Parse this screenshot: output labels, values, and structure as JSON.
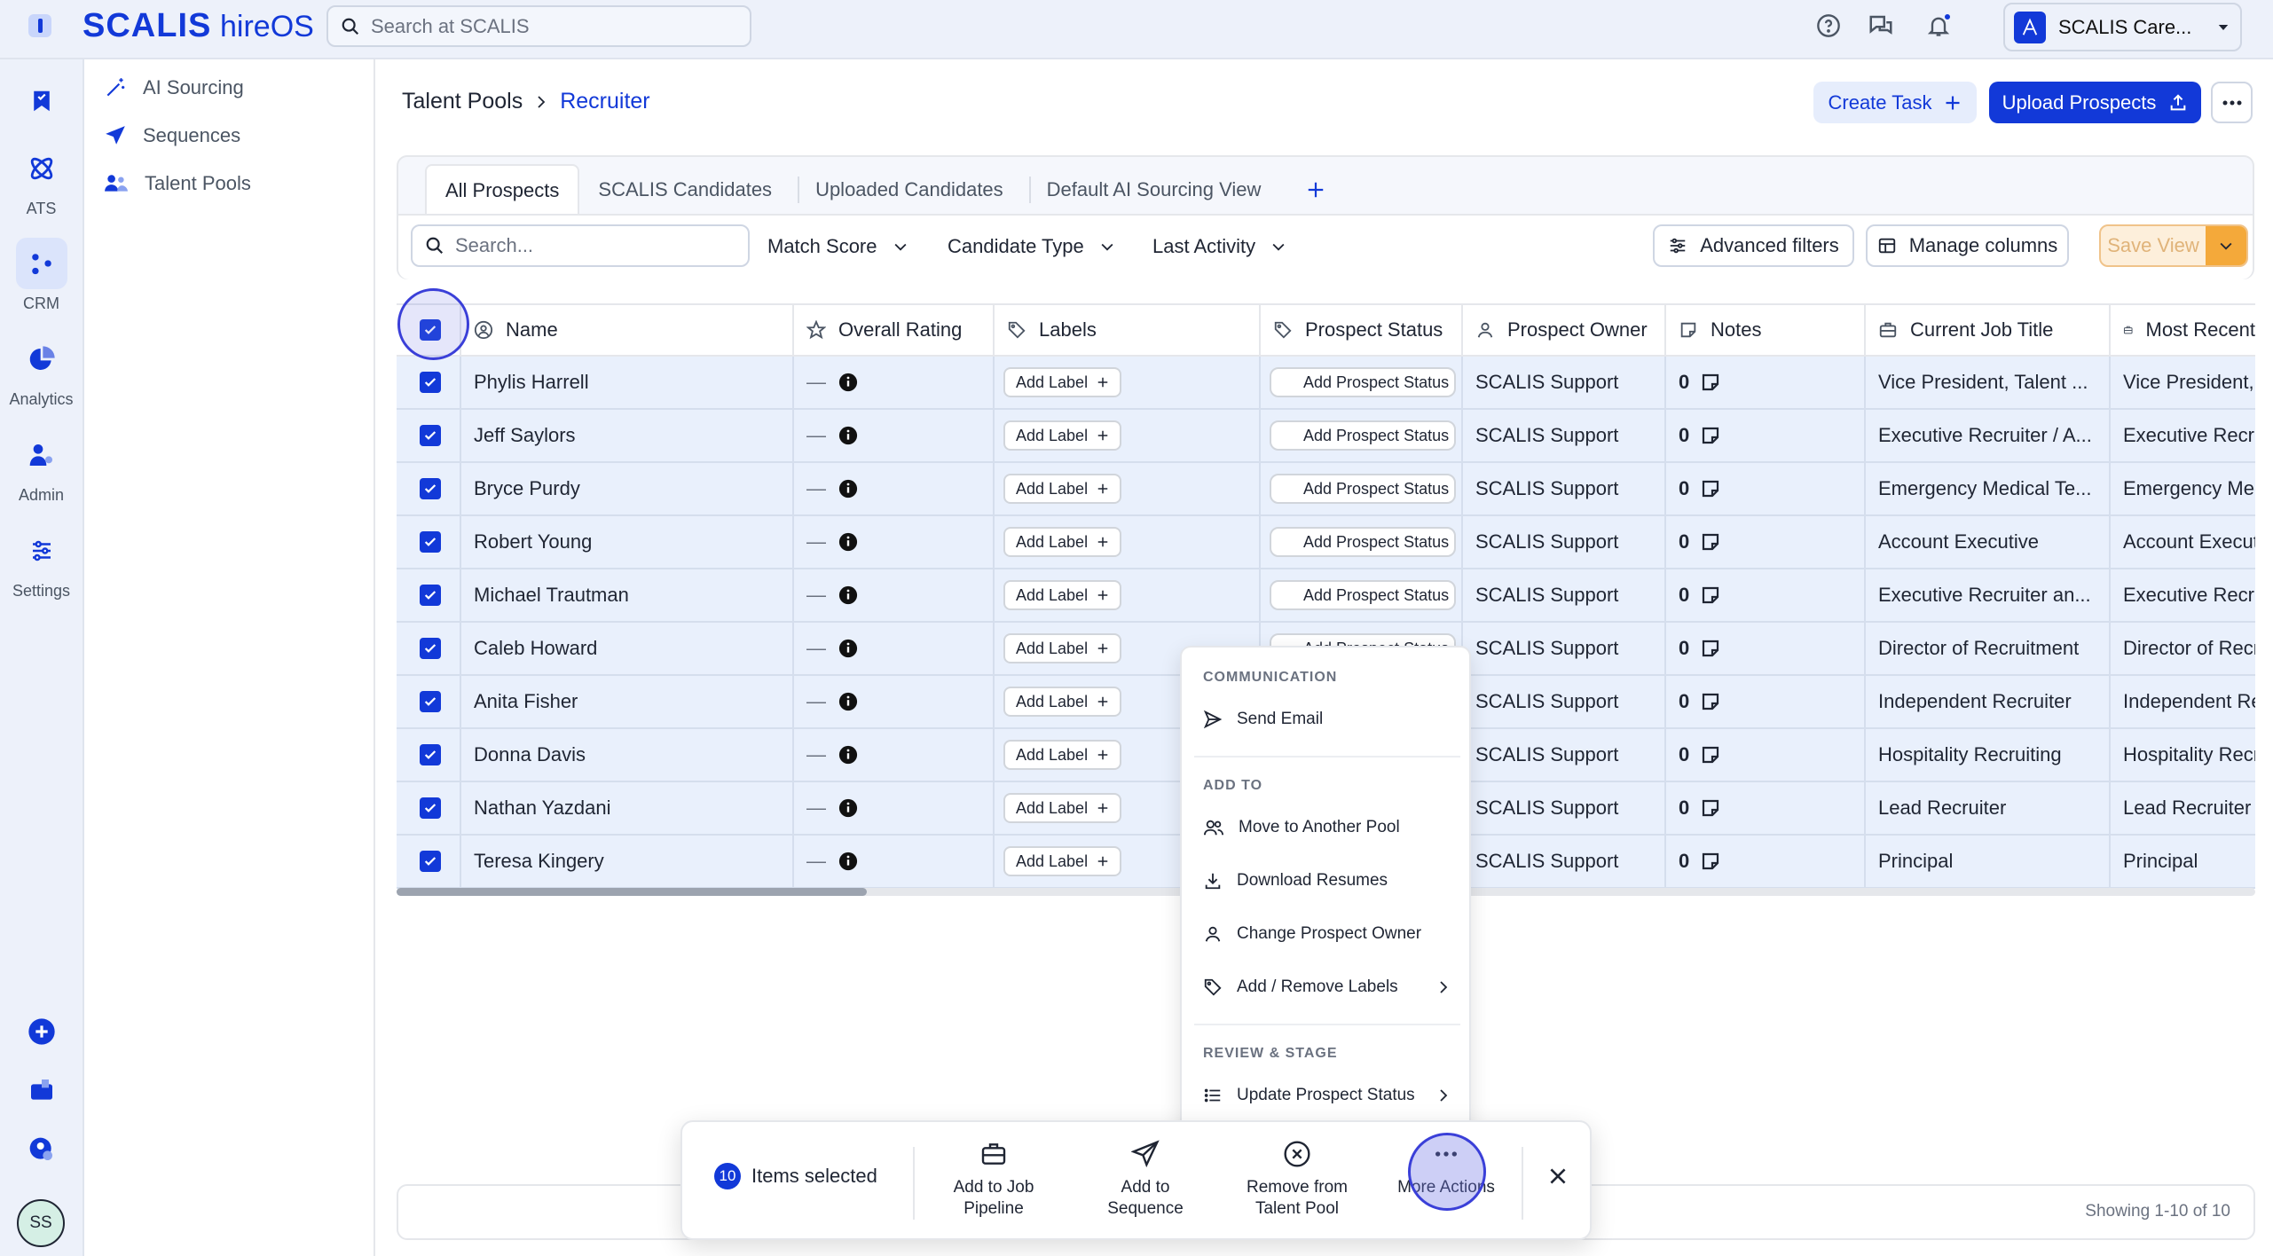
{
  "app": {
    "brand": "SCALIS",
    "product": "hireOS"
  },
  "topbar": {
    "search_placeholder": "Search at SCALIS",
    "org_name": "SCALIS Care..."
  },
  "rail": {
    "items": [
      {
        "label": "",
        "icon": "bookmark-icon"
      },
      {
        "label": "ATS",
        "icon": "atom-icon"
      },
      {
        "label": "CRM",
        "icon": "crm-dots-icon",
        "active": true
      },
      {
        "label": "Analytics",
        "icon": "pie-chart-icon"
      },
      {
        "label": "Admin",
        "icon": "admin-user-icon"
      },
      {
        "label": "Settings",
        "icon": "sliders-icon"
      }
    ],
    "user_initials": "SS"
  },
  "subnav": {
    "items": [
      {
        "label": "AI Sourcing",
        "icon": "magic-wand-icon"
      },
      {
        "label": "Sequences",
        "icon": "paper-plane-icon"
      },
      {
        "label": "Talent Pools",
        "icon": "people-icon"
      }
    ]
  },
  "breadcrumb": {
    "parent": "Talent Pools",
    "current": "Recruiter"
  },
  "header": {
    "create_task": "Create Task",
    "upload": "Upload Prospects"
  },
  "tabs": [
    "All Prospects",
    "SCALIS Candidates",
    "Uploaded Candidates",
    "Default AI Sourcing View"
  ],
  "filters": {
    "search_placeholder": "Search...",
    "dropdowns": [
      "Match Score",
      "Candidate Type",
      "Last Activity"
    ],
    "advanced": "Advanced filters",
    "manage_columns": "Manage columns",
    "save_view": "Save View"
  },
  "columns": [
    "Name",
    "Overall Rating",
    "Labels",
    "Prospect Status",
    "Prospect Owner",
    "Notes",
    "Current Job Title",
    "Most Recent"
  ],
  "rows": [
    {
      "name": "Phylis Harrell",
      "rating": "—",
      "label": "Add Label",
      "status": "Add Prospect Status",
      "owner": "SCALIS Support",
      "notes": "0",
      "title": "Vice President, Talent ...",
      "recent": "Vice President,"
    },
    {
      "name": "Jeff Saylors",
      "rating": "—",
      "label": "Add Label",
      "status": "Add Prospect Status",
      "owner": "SCALIS Support",
      "notes": "0",
      "title": "Executive Recruiter / A...",
      "recent": "Executive Recrui"
    },
    {
      "name": "Bryce Purdy",
      "rating": "—",
      "label": "Add Label",
      "status": "Add Prospect Status",
      "owner": "SCALIS Support",
      "notes": "0",
      "title": "Emergency Medical Te...",
      "recent": "Emergency Med"
    },
    {
      "name": "Robert Young",
      "rating": "—",
      "label": "Add Label",
      "status": "Add Prospect Status",
      "owner": "SCALIS Support",
      "notes": "0",
      "title": "Account Executive",
      "recent": "Account Execut"
    },
    {
      "name": "Michael Trautman",
      "rating": "—",
      "label": "Add Label",
      "status": "Add Prospect Status",
      "owner": "SCALIS Support",
      "notes": "0",
      "title": "Executive Recruiter an...",
      "recent": "Executive Recrui"
    },
    {
      "name": "Caleb Howard",
      "rating": "—",
      "label": "Add Label",
      "status": "Add Prospect Status",
      "owner": "SCALIS Support",
      "notes": "0",
      "title": "Director of Recruitment",
      "recent": "Director of Recr"
    },
    {
      "name": "Anita Fisher",
      "rating": "—",
      "label": "Add Label",
      "status": "",
      "owner": "SCALIS Support",
      "notes": "0",
      "title": "Independent Recruiter",
      "recent": "Independent Re"
    },
    {
      "name": "Donna Davis",
      "rating": "—",
      "label": "Add Label",
      "status": "",
      "owner": "SCALIS Support",
      "notes": "0",
      "title": "Hospitality Recruiting",
      "recent": "Hospitality Recr"
    },
    {
      "name": "Nathan Yazdani",
      "rating": "—",
      "label": "Add Label",
      "status": "",
      "owner": "SCALIS Support",
      "notes": "0",
      "title": "Lead Recruiter",
      "recent": "Lead Recruiter"
    },
    {
      "name": "Teresa Kingery",
      "rating": "—",
      "label": "Add Label",
      "status": "",
      "owner": "SCALIS Support",
      "notes": "0",
      "title": "Principal",
      "recent": "Principal"
    }
  ],
  "footer": {
    "showing": "Showing 1-10 of 10"
  },
  "menu": {
    "communication": "COMMUNICATION",
    "send_email": "Send Email",
    "add_to": "ADD TO",
    "move_pool": "Move to Another Pool",
    "download": "Download Resumes",
    "change_owner": "Change Prospect Owner",
    "labels": "Add / Remove Labels",
    "review": "REVIEW & STAGE",
    "update_status": "Update Prospect Status"
  },
  "actionbar": {
    "count": "10",
    "items_selected": "Items selected",
    "add_pipeline_1": "Add to Job",
    "add_pipeline_2": "Pipeline",
    "add_seq_1": "Add to",
    "add_seq_2": "Sequence",
    "remove_1": "Remove from",
    "remove_2": "Talent Pool",
    "more": "More Actions"
  },
  "colors": {
    "accent": "#1239d8",
    "row_selected": "#e9f0fc",
    "save_orange": "#f4a93a"
  }
}
